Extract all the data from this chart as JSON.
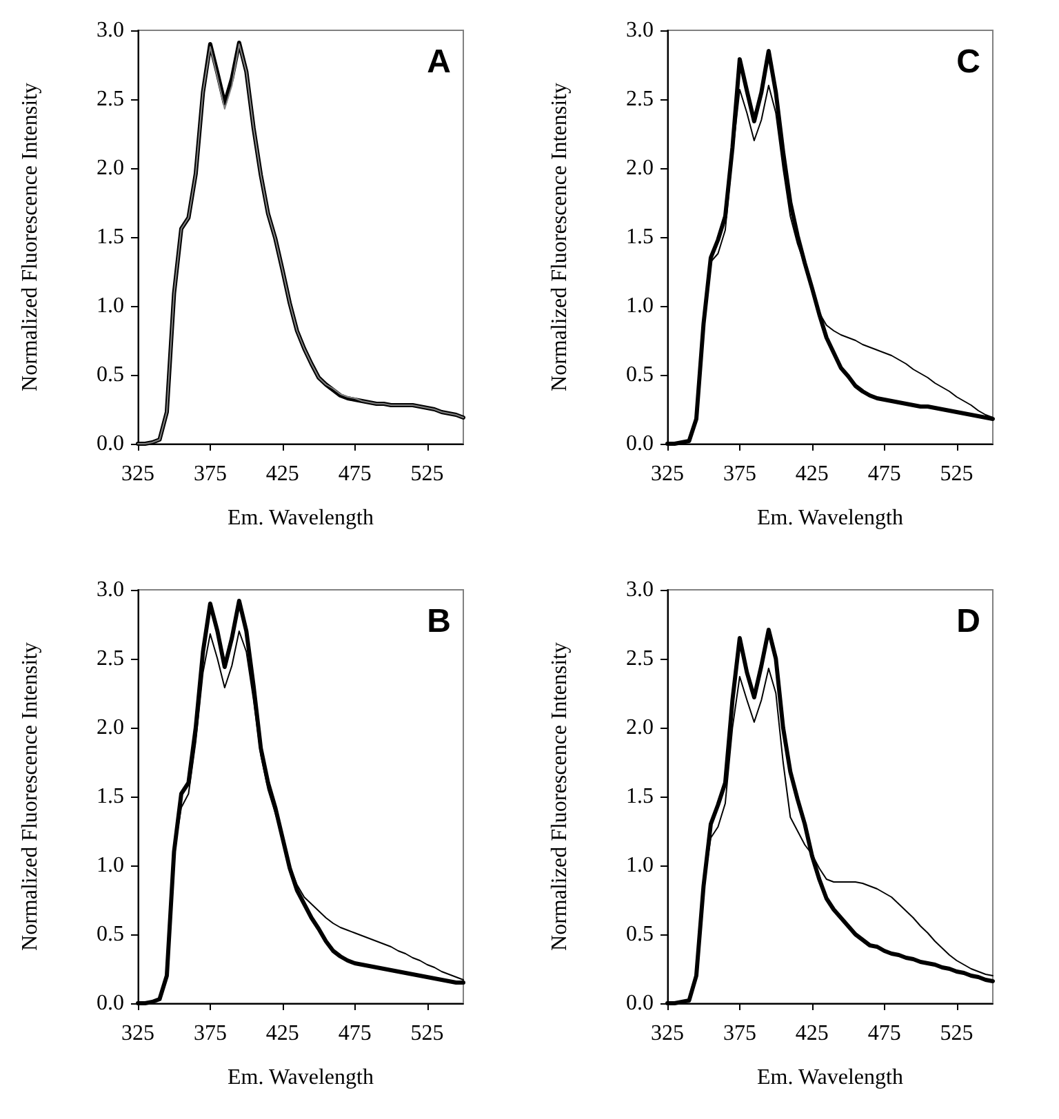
{
  "chart_data": [
    {
      "type": "line",
      "title": "A",
      "xlabel": "Em. Wavelength",
      "ylabel": "Normalized Fluorescence Intensity",
      "xlim": [
        325,
        550
      ],
      "xticks": [
        325,
        375,
        425,
        475,
        525
      ],
      "ylim": [
        0,
        3
      ],
      "yticks": [
        {
          "value": 0,
          "label": "0.0"
        },
        {
          "value": 0.5,
          "label": "0.5"
        },
        {
          "value": 1,
          "label": "1.0"
        },
        {
          "value": 1.5,
          "label": "1.5"
        },
        {
          "value": 2,
          "label": "2.0"
        },
        {
          "value": 2.5,
          "label": "2.5"
        },
        {
          "value": 3,
          "label": "3.0"
        }
      ],
      "x": [
        325,
        330,
        335,
        340,
        345,
        350,
        355,
        360,
        365,
        370,
        375,
        380,
        385,
        390,
        395,
        400,
        405,
        410,
        415,
        420,
        425,
        430,
        435,
        440,
        445,
        450,
        455,
        460,
        465,
        470,
        475,
        480,
        485,
        490,
        495,
        500,
        505,
        510,
        515,
        520,
        525,
        530,
        535,
        540,
        545,
        550
      ],
      "series": [
        {
          "color": "#000000",
          "values": [
            0,
            0,
            0.01,
            0.03,
            0.23,
            1.09,
            1.56,
            1.64,
            1.96,
            2.55,
            2.9,
            2.69,
            2.47,
            2.65,
            2.91,
            2.7,
            2.29,
            1.95,
            1.67,
            1.49,
            1.26,
            1.02,
            0.82,
            0.69,
            0.58,
            0.48,
            0.43,
            0.39,
            0.35,
            0.33,
            0.32,
            0.31,
            0.3,
            0.29,
            0.29,
            0.28,
            0.28,
            0.28,
            0.28,
            0.27,
            0.26,
            0.25,
            0.23,
            0.22,
            0.21,
            0.19
          ]
        },
        {
          "color": "#808080",
          "values": [
            0,
            0,
            0.01,
            0.03,
            0.23,
            1.09,
            1.56,
            1.64,
            1.96,
            2.55,
            2.88,
            2.66,
            2.43,
            2.6,
            2.9,
            2.7,
            2.29,
            1.95,
            1.67,
            1.49,
            1.26,
            1.02,
            0.82,
            0.69,
            0.58,
            0.48,
            0.43,
            0.4,
            0.36,
            0.34,
            0.33,
            0.31,
            0.3,
            0.29,
            0.29,
            0.28,
            0.28,
            0.28,
            0.28,
            0.27,
            0.26,
            0.25,
            0.23,
            0.22,
            0.21,
            0.19
          ]
        }
      ]
    },
    {
      "type": "line",
      "title": "C",
      "xlabel": "Em. Wavelength",
      "ylabel": "Normalized Fluorescence Intensity",
      "xlim": [
        325,
        550
      ],
      "xticks": [
        325,
        375,
        425,
        475,
        525
      ],
      "ylim": [
        0,
        3
      ],
      "yticks": [
        {
          "value": 0,
          "label": "0.0"
        },
        {
          "value": 0.5,
          "label": "0.5"
        },
        {
          "value": 1,
          "label": "1.0"
        },
        {
          "value": 1.5,
          "label": "1.5"
        },
        {
          "value": 2,
          "label": "2.0"
        },
        {
          "value": 2.5,
          "label": "2.5"
        },
        {
          "value": 3,
          "label": "3.0"
        }
      ],
      "x": [
        325,
        330,
        335,
        340,
        345,
        350,
        355,
        360,
        365,
        370,
        375,
        380,
        385,
        390,
        395,
        400,
        405,
        410,
        415,
        420,
        425,
        430,
        435,
        440,
        445,
        450,
        455,
        460,
        465,
        470,
        475,
        480,
        485,
        490,
        495,
        500,
        505,
        510,
        515,
        520,
        525,
        530,
        535,
        540,
        545,
        550
      ],
      "series": [
        {
          "color": "#000000",
          "values": [
            0,
            0,
            0.01,
            0.02,
            0.18,
            0.87,
            1.35,
            1.48,
            1.65,
            2.15,
            2.79,
            2.56,
            2.34,
            2.55,
            2.85,
            2.55,
            2.12,
            1.75,
            1.51,
            1.31,
            1.13,
            0.94,
            0.77,
            0.66,
            0.55,
            0.49,
            0.42,
            0.38,
            0.35,
            0.33,
            0.32,
            0.31,
            0.3,
            0.29,
            0.28,
            0.27,
            0.27,
            0.26,
            0.25,
            0.24,
            0.23,
            0.22,
            0.21,
            0.2,
            0.19,
            0.18
          ]
        },
        {
          "color": "#000000",
          "values": [
            0,
            0,
            0.01,
            0.02,
            0.18,
            0.87,
            1.32,
            1.38,
            1.55,
            2.1,
            2.57,
            2.4,
            2.2,
            2.35,
            2.6,
            2.4,
            2.0,
            1.65,
            1.45,
            1.3,
            1.12,
            0.95,
            0.86,
            0.82,
            0.79,
            0.77,
            0.75,
            0.72,
            0.7,
            0.68,
            0.66,
            0.64,
            0.61,
            0.58,
            0.54,
            0.51,
            0.48,
            0.44,
            0.41,
            0.38,
            0.34,
            0.31,
            0.28,
            0.24,
            0.21,
            0.19
          ]
        }
      ]
    },
    {
      "type": "line",
      "title": "B",
      "xlabel": "Em. Wavelength",
      "ylabel": "Normalized Fluorescence Intensity",
      "xlim": [
        325,
        550
      ],
      "xticks": [
        325,
        375,
        425,
        475,
        525
      ],
      "ylim": [
        0,
        3
      ],
      "yticks": [
        {
          "value": 0,
          "label": "0.0"
        },
        {
          "value": 0.5,
          "label": "0.5"
        },
        {
          "value": 1,
          "label": "1.0"
        },
        {
          "value": 1.5,
          "label": "1.5"
        },
        {
          "value": 2,
          "label": "2.0"
        },
        {
          "value": 2.5,
          "label": "2.5"
        },
        {
          "value": 3,
          "label": "3.0"
        }
      ],
      "x": [
        325,
        330,
        335,
        340,
        345,
        350,
        355,
        360,
        365,
        370,
        375,
        380,
        385,
        390,
        395,
        400,
        405,
        410,
        415,
        420,
        425,
        430,
        435,
        440,
        445,
        450,
        455,
        460,
        465,
        470,
        475,
        480,
        485,
        490,
        495,
        500,
        505,
        510,
        515,
        520,
        525,
        530,
        535,
        540,
        545,
        550
      ],
      "series": [
        {
          "color": "#000000",
          "values": [
            0,
            0,
            0.01,
            0.03,
            0.2,
            1.1,
            1.52,
            1.6,
            2.0,
            2.55,
            2.9,
            2.7,
            2.44,
            2.65,
            2.92,
            2.7,
            2.3,
            1.85,
            1.6,
            1.42,
            1.2,
            0.98,
            0.82,
            0.72,
            0.62,
            0.54,
            0.45,
            0.38,
            0.34,
            0.31,
            0.29,
            0.28,
            0.27,
            0.26,
            0.25,
            0.24,
            0.23,
            0.22,
            0.21,
            0.2,
            0.19,
            0.18,
            0.17,
            0.16,
            0.15,
            0.15
          ]
        },
        {
          "color": "#000000",
          "values": [
            0,
            0,
            0.01,
            0.03,
            0.2,
            1.1,
            1.42,
            1.52,
            1.9,
            2.4,
            2.68,
            2.5,
            2.29,
            2.45,
            2.7,
            2.55,
            2.2,
            1.8,
            1.55,
            1.38,
            1.2,
            1.0,
            0.86,
            0.77,
            0.72,
            0.67,
            0.62,
            0.58,
            0.55,
            0.53,
            0.51,
            0.49,
            0.47,
            0.45,
            0.43,
            0.41,
            0.38,
            0.36,
            0.33,
            0.31,
            0.28,
            0.26,
            0.23,
            0.21,
            0.19,
            0.17
          ]
        }
      ]
    },
    {
      "type": "line",
      "title": "D",
      "xlabel": "Em. Wavelength",
      "ylabel": "Normalized Fluorescence Intensity",
      "xlim": [
        325,
        550
      ],
      "xticks": [
        325,
        375,
        425,
        475,
        525
      ],
      "ylim": [
        0,
        3
      ],
      "yticks": [
        {
          "value": 0,
          "label": "0.0"
        },
        {
          "value": 0.5,
          "label": "0.5"
        },
        {
          "value": 1,
          "label": "1.0"
        },
        {
          "value": 1.5,
          "label": "1.5"
        },
        {
          "value": 2,
          "label": "2.0"
        },
        {
          "value": 2.5,
          "label": "2.5"
        },
        {
          "value": 3,
          "label": "3.0"
        }
      ],
      "x": [
        325,
        330,
        335,
        340,
        345,
        350,
        355,
        360,
        365,
        370,
        375,
        380,
        385,
        390,
        395,
        400,
        405,
        410,
        415,
        420,
        425,
        430,
        435,
        440,
        445,
        450,
        455,
        460,
        465,
        470,
        475,
        480,
        485,
        490,
        495,
        500,
        505,
        510,
        515,
        520,
        525,
        530,
        535,
        540,
        545,
        550
      ],
      "series": [
        {
          "color": "#000000",
          "values": [
            0,
            0,
            0.01,
            0.02,
            0.2,
            0.85,
            1.3,
            1.44,
            1.6,
            2.2,
            2.65,
            2.4,
            2.22,
            2.45,
            2.71,
            2.5,
            2.0,
            1.68,
            1.48,
            1.3,
            1.07,
            0.9,
            0.76,
            0.68,
            0.62,
            0.56,
            0.5,
            0.46,
            0.42,
            0.41,
            0.38,
            0.36,
            0.35,
            0.33,
            0.32,
            0.3,
            0.29,
            0.28,
            0.26,
            0.25,
            0.23,
            0.22,
            0.2,
            0.19,
            0.17,
            0.16
          ]
        },
        {
          "color": "#000000",
          "values": [
            0,
            0,
            0.01,
            0.02,
            0.2,
            0.85,
            1.2,
            1.28,
            1.45,
            2.0,
            2.37,
            2.2,
            2.04,
            2.2,
            2.43,
            2.25,
            1.75,
            1.35,
            1.25,
            1.15,
            1.08,
            0.98,
            0.9,
            0.88,
            0.88,
            0.88,
            0.88,
            0.87,
            0.85,
            0.83,
            0.8,
            0.77,
            0.72,
            0.67,
            0.62,
            0.56,
            0.51,
            0.45,
            0.4,
            0.35,
            0.31,
            0.28,
            0.25,
            0.23,
            0.21,
            0.2
          ]
        }
      ]
    }
  ]
}
